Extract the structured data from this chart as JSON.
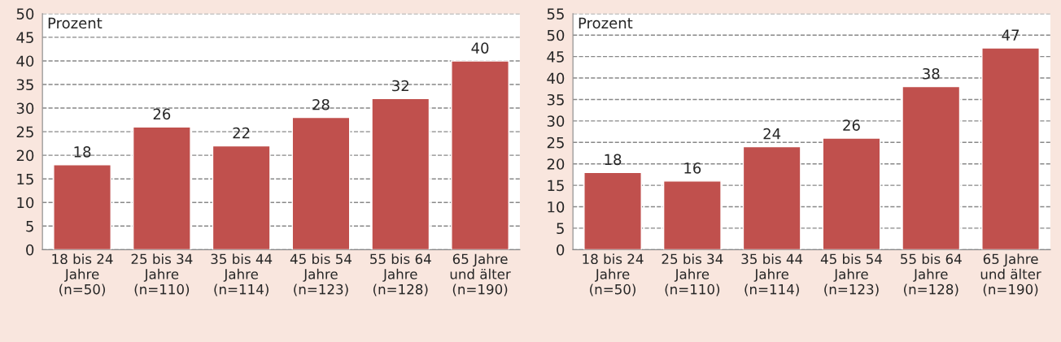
{
  "chart_data": [
    {
      "type": "bar",
      "ylabel": "Prozent",
      "categories": [
        "18 bis 24\nJahre\n(n=50)",
        "25 bis 34\nJahre\n(n=110)",
        "35 bis 44\nJahre\n(n=114)",
        "45 bis 54\nJahre\n(n=123)",
        "55 bis 64\nJahre\n(n=128)",
        "65 Jahre\nund älter\n(n=190)"
      ],
      "series": [
        {
          "color": "#c0504d",
          "values": [
            18,
            26,
            22,
            28,
            32,
            40
          ]
        }
      ],
      "ylim": [
        0,
        50
      ],
      "yticks": [
        0,
        5,
        10,
        15,
        20,
        25,
        30,
        35,
        40,
        45,
        50
      ],
      "grid": "y",
      "data_labels": true
    },
    {
      "type": "bar",
      "ylabel": "Prozent",
      "categories": [
        "18 bis 24\nJahre\n(n=50)",
        "25 bis 34\nJahre\n(n=110)",
        "35 bis 44\nJahre\n(n=114)",
        "45 bis 54\nJahre\n(n=123)",
        "55 bis 64\nJahre\n(n=128)",
        "65 Jahre\nund älter\n(n=190)"
      ],
      "series": [
        {
          "color": "#c0504d",
          "values": [
            18,
            16,
            24,
            26,
            38,
            47
          ]
        }
      ],
      "ylim": [
        0,
        55
      ],
      "yticks": [
        0,
        5,
        10,
        15,
        20,
        25,
        30,
        35,
        40,
        45,
        50,
        55
      ],
      "grid": "y",
      "data_labels": true
    }
  ]
}
